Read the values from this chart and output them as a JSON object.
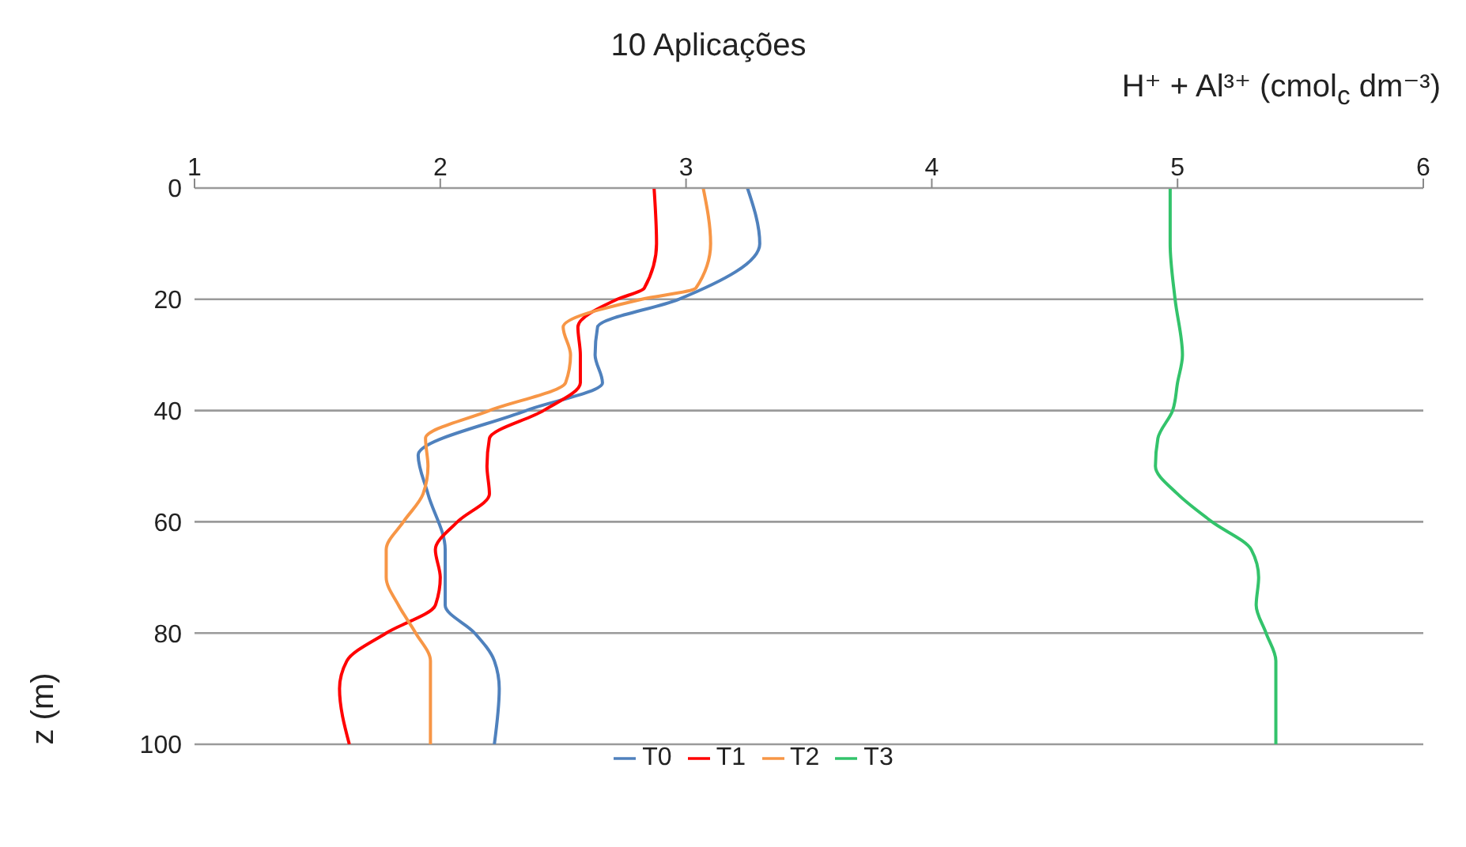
{
  "chart_data": {
    "type": "line",
    "title": "10 Aplicações",
    "xlabel": "H⁺ + Al³⁺ (cmol$_{c}$ dm⁻³)",
    "ylabel": "z (m)",
    "xlim": [
      1,
      6
    ],
    "xticks": [
      1,
      2,
      3,
      4,
      5,
      6
    ],
    "ylim": [
      100,
      0
    ],
    "yticks": [
      0,
      20,
      40,
      60,
      80,
      100
    ],
    "grid": "y",
    "legend": "bottom",
    "marker": "none",
    "line_style": "solid",
    "series": [
      {
        "name": "T0",
        "color": "#4f81bd",
        "x": [
          3.25,
          3.3,
          2.97,
          2.64,
          2.63,
          2.66,
          2.35,
          1.91,
          1.95,
          2.02,
          2.02,
          2.14,
          2.22,
          2.24,
          2.22
        ],
        "values": [
          0,
          10,
          20,
          25,
          30,
          35,
          40,
          48,
          55,
          65,
          75,
          80,
          85,
          90,
          100
        ]
      },
      {
        "name": "T1",
        "color": "#ff0000",
        "x": [
          2.87,
          2.88,
          2.83,
          2.72,
          2.56,
          2.57,
          2.57,
          2.42,
          2.2,
          2.19,
          2.2,
          2.07,
          1.98,
          2.0,
          1.98,
          1.78,
          1.62,
          1.59,
          1.63
        ],
        "values": [
          0,
          10,
          18,
          20,
          25,
          30,
          35,
          40,
          45,
          50,
          55,
          60,
          65,
          70,
          75,
          80,
          85,
          90,
          100
        ]
      },
      {
        "name": "T2",
        "color": "#f79646",
        "x": [
          3.07,
          3.1,
          3.04,
          2.82,
          2.5,
          2.53,
          2.51,
          2.2,
          1.94,
          1.95,
          1.93,
          1.85,
          1.78,
          1.78,
          1.83,
          1.9,
          1.96,
          1.96
        ],
        "values": [
          0,
          10,
          18,
          20,
          25,
          30,
          35,
          40,
          45,
          50,
          55,
          60,
          65,
          70,
          75,
          80,
          85,
          100
        ]
      },
      {
        "name": "T3",
        "color": "#33c36b",
        "x": [
          4.97,
          4.97,
          4.99,
          5.02,
          5.0,
          4.98,
          4.92,
          4.91,
          5.0,
          5.14,
          5.3,
          5.33,
          5.32,
          5.36,
          5.4,
          5.4
        ],
        "values": [
          0,
          10,
          20,
          30,
          35,
          40,
          45,
          50,
          55,
          60,
          65,
          70,
          75,
          80,
          85,
          100
        ]
      }
    ]
  }
}
